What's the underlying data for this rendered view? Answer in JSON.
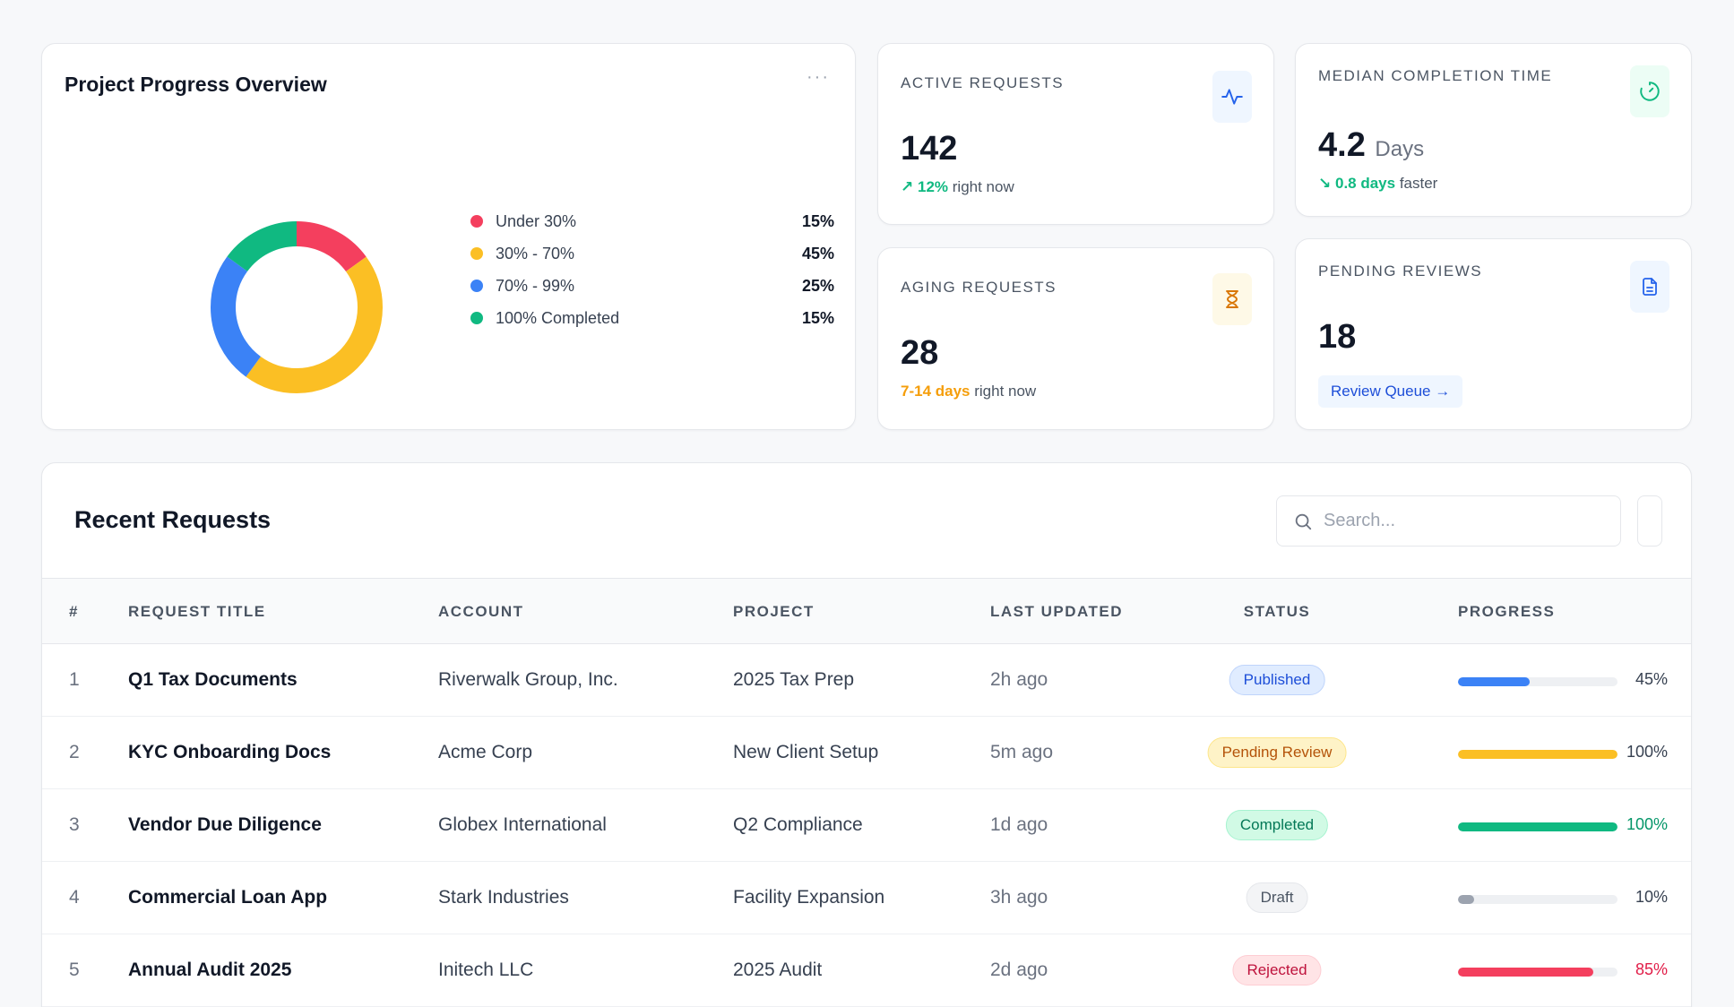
{
  "progress_overview": {
    "title": "Project Progress Overview",
    "more_label": "···",
    "segments": [
      {
        "label": "Under 30%",
        "value": "15%",
        "fraction": 0.15,
        "color": "#f43f5e"
      },
      {
        "label": "30% - 70%",
        "value": "45%",
        "fraction": 0.45,
        "color": "#fbbf24"
      },
      {
        "label": "70% - 99%",
        "value": "25%",
        "fraction": 0.25,
        "color": "#3b82f6"
      },
      {
        "label": "100% Completed",
        "value": "15%",
        "fraction": 0.15,
        "color": "#10b981"
      }
    ]
  },
  "stats": {
    "active": {
      "label": "ACTIVE REQUESTS",
      "value": "142",
      "trend_icon": "↗",
      "trend": "12%",
      "trend_suffix": "right now",
      "icon": "activity-icon",
      "accent": "#10b981"
    },
    "aging": {
      "label": "AGING REQUESTS",
      "value": "28",
      "trend": "7-14 days",
      "trend_suffix": "right now",
      "icon": "hourglass-icon",
      "accent": "#f59e0b"
    },
    "median": {
      "label": "MEDIAN COMPLETION TIME",
      "value": "4.2",
      "unit": "Days",
      "trend_icon": "↘",
      "trend": "0.8 days",
      "trend_suffix": "faster",
      "icon": "timer-icon",
      "accent": "#10b981"
    },
    "pending": {
      "label": "PENDING REVIEWS",
      "value": "18",
      "button": "Review Queue →",
      "icon": "document-icon"
    }
  },
  "recent_requests": {
    "title": "Recent Requests",
    "search_placeholder": "Search...",
    "columns": [
      "#",
      "REQUEST TITLE",
      "ACCOUNT",
      "PROJECT",
      "LAST UPDATED",
      "STATUS",
      "PROGRESS"
    ],
    "rows": [
      {
        "num": "1",
        "title": "Q1 Tax Documents",
        "account": "Riverwalk Group, Inc.",
        "project": "2025 Tax Prep",
        "updated": "2h ago",
        "status": "Published",
        "progress": "45%",
        "fraction": 0.45,
        "bar_color": "#3b82f6",
        "pct_color": "#374151",
        "badge_bg": "#e0ecff",
        "badge_fg": "#1d4ed8",
        "badge_border": "#bfd4fb"
      },
      {
        "num": "2",
        "title": "KYC Onboarding Docs",
        "account": "Acme Corp",
        "project": "New Client Setup",
        "updated": "5m ago",
        "status": "Pending Review",
        "progress": "100%",
        "fraction": 1.0,
        "bar_color": "#fbbf24",
        "pct_color": "#374151",
        "badge_bg": "#fef3c7",
        "badge_fg": "#b45309",
        "badge_border": "#fde68a"
      },
      {
        "num": "3",
        "title": "Vendor Due Diligence",
        "account": "Globex International",
        "project": "Q2 Compliance",
        "updated": "1d ago",
        "status": "Completed",
        "progress": "100%",
        "fraction": 1.0,
        "bar_color": "#10b981",
        "pct_color": "#059669",
        "badge_bg": "#d1fae5",
        "badge_fg": "#047857",
        "badge_border": "#a7f3d0"
      },
      {
        "num": "4",
        "title": "Commercial Loan App",
        "account": "Stark Industries",
        "project": "Facility Expansion",
        "updated": "3h ago",
        "status": "Draft",
        "progress": "10%",
        "fraction": 0.1,
        "bar_color": "#9ca3af",
        "pct_color": "#374151",
        "badge_bg": "#f3f4f6",
        "badge_fg": "#4b5563",
        "badge_border": "#e5e7eb"
      },
      {
        "num": "5",
        "title": "Annual Audit 2025",
        "account": "Initech LLC",
        "project": "2025 Audit",
        "updated": "2d ago",
        "status": "Rejected",
        "progress": "85%",
        "fraction": 0.85,
        "bar_color": "#f43f5e",
        "pct_color": "#e11d48",
        "badge_bg": "#ffe4e6",
        "badge_fg": "#be123c",
        "badge_border": "#fecdd3"
      }
    ]
  }
}
